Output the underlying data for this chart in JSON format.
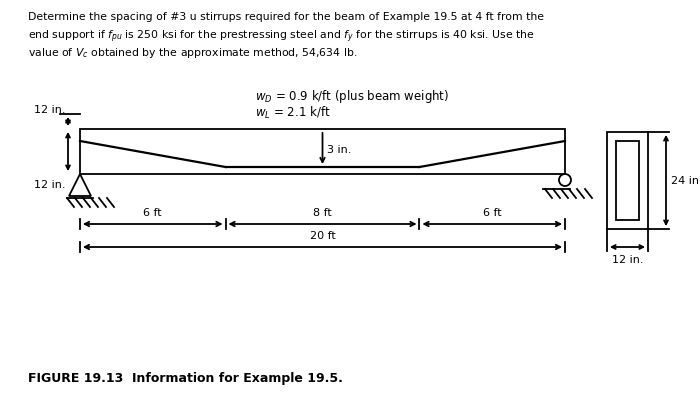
{
  "header_line1": "Determine the spacing of #3 u stirrups required for the beam of Example 19.5 at 4 ft from the",
  "header_line2": "end support if $f_{pu}$ is 250 ksi for the prestressing steel and $f_y$ for the stirrups is 40 ksi. Use the",
  "header_line3": "value of $V_c$ obtained by the approximate method, 54,634 lb.",
  "wD_label": "$w_D$ = 0.9 k/ft (plus beam weight)",
  "wL_label": "$w_L$ = 2.1 k/ft",
  "label_3in": "3 in.",
  "label_12in_top": "12 in.",
  "label_12in_bot": "12 in.",
  "label_24in": "24 in.",
  "label_12in_cs": "12 in.",
  "label_6ft_left": "6 ft",
  "label_8ft": "8 ft",
  "label_6ft_right": "6 ft",
  "label_20ft": "20 ft",
  "figure_caption": "FIGURE 19.13  Information for Example 19.5.",
  "bg_color": "#ffffff",
  "line_color": "#000000",
  "font_size_header": 7.8,
  "font_size_labels": 8.0,
  "font_size_caption": 9.0
}
